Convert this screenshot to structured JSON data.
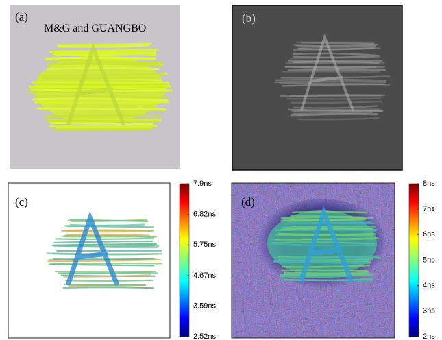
{
  "panels": [
    {
      "label": "(a)",
      "caption": "M&G and GUANGBO"
    },
    {
      "label": "(b)"
    },
    {
      "label": "(c)"
    },
    {
      "label": "(d)"
    }
  ],
  "colorbars": [
    {
      "ticks": [
        {
          "value": 7.9,
          "label": "7.9ns"
        },
        {
          "value": 6.82,
          "label": "6.82ns"
        },
        {
          "value": 5.75,
          "label": "5.75ns"
        },
        {
          "value": 4.67,
          "label": "4.67ns"
        },
        {
          "value": 3.59,
          "label": "3.59ns"
        },
        {
          "value": 2.52,
          "label": "2.52ns"
        }
      ]
    },
    {
      "ticks": [
        {
          "value": 8,
          "label": "8ns"
        },
        {
          "value": 7,
          "label": "7ns"
        },
        {
          "value": 6,
          "label": "6ns"
        },
        {
          "value": 5,
          "label": "5ns"
        },
        {
          "value": 4,
          "label": "4ns"
        },
        {
          "value": 3,
          "label": "3ns"
        },
        {
          "value": 2,
          "label": "2ns"
        }
      ]
    }
  ]
}
